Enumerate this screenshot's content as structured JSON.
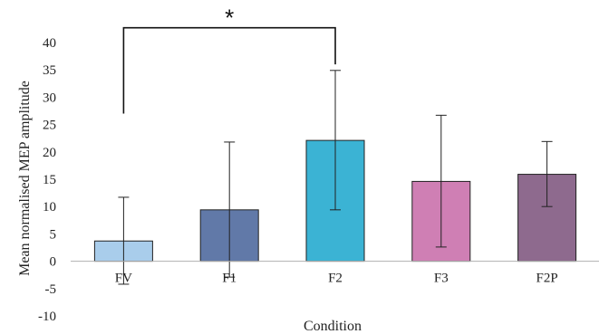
{
  "chart_data": {
    "type": "bar",
    "title": "",
    "xlabel": "Condition",
    "ylabel": "Mean normalised MEP amplitude",
    "ylim": [
      -10,
      40
    ],
    "yticks": [
      -10,
      -5,
      0,
      5,
      10,
      15,
      20,
      25,
      30,
      35,
      40
    ],
    "grid": false,
    "legend": "none",
    "categories": [
      "FV",
      "F1",
      "F2",
      "F3",
      "F2P"
    ],
    "values": [
      3.7,
      9.4,
      22.1,
      14.6,
      15.9
    ],
    "error_bars": [
      {
        "low": -4.2,
        "high": 11.7
      },
      {
        "low": -2.9,
        "high": 21.8
      },
      {
        "low": 9.4,
        "high": 34.9
      },
      {
        "low": 2.6,
        "high": 26.7
      },
      {
        "low": 10.0,
        "high": 21.9
      }
    ],
    "colors": [
      "#a9cdeb",
      "#6179a8",
      "#3bb3d4",
      "#cf7fb4",
      "#8e6a8e"
    ],
    "significance": {
      "label": "*",
      "from": "FV",
      "to": "F2",
      "left_y": 27,
      "right_y": 36,
      "bracket_y": 42.7
    }
  }
}
